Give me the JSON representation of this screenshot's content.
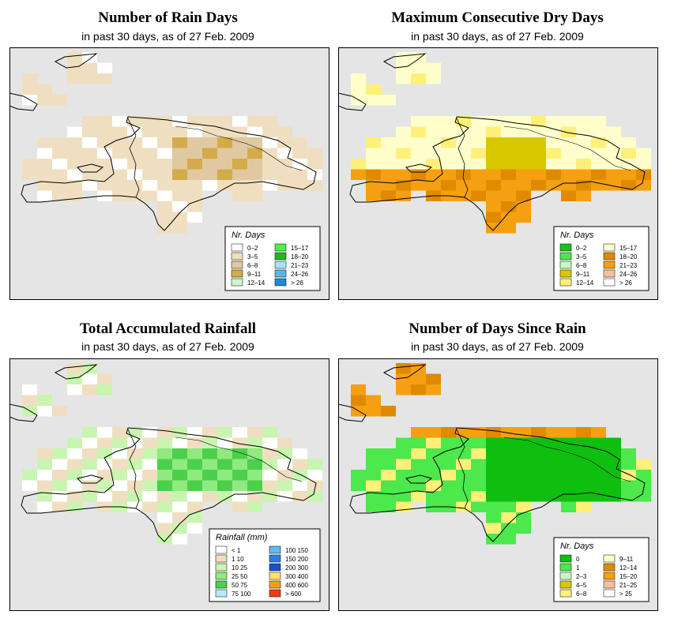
{
  "panels": [
    {
      "title": "Number of Rain Days",
      "subtitle": "in past 30 days, as of  27 Feb. 2009",
      "legend_title": "Nr. Days",
      "legend": [
        {
          "label": "0–2",
          "color": "#ffffff"
        },
        {
          "label": "3–5",
          "color": "#efdfc0"
        },
        {
          "label": "6–8",
          "color": "#e0c9a0"
        },
        {
          "label": "9–11",
          "color": "#d3ab4a"
        },
        {
          "label": "12–14",
          "color": "#ccf5cc"
        },
        {
          "label": "15–17",
          "color": "#4cf04c"
        },
        {
          "label": "18–20",
          "color": "#22b822"
        },
        {
          "label": "21–23",
          "color": "#a8e2f2"
        },
        {
          "label": "24–26",
          "color": "#5ab5ea"
        },
        {
          "label": "> 26",
          "color": "#1f8ad5"
        }
      ]
    },
    {
      "title": "Maximum Consecutive Dry Days",
      "subtitle": "in past 30 days, as of  27 Feb. 2009",
      "legend_title": "Nr. Days",
      "legend": [
        {
          "label": "0–2",
          "color": "#1fbf1f"
        },
        {
          "label": "3–5",
          "color": "#4ce84c"
        },
        {
          "label": "6–8",
          "color": "#c8f8c8"
        },
        {
          "label": "9–11",
          "color": "#d8c800"
        },
        {
          "label": "12–14",
          "color": "#fff07a"
        },
        {
          "label": "15–17",
          "color": "#ffffcc"
        },
        {
          "label": "18–20",
          "color": "#e08a00"
        },
        {
          "label": "21–23",
          "color": "#f5a010"
        },
        {
          "label": "24–26",
          "color": "#f8c09a"
        },
        {
          "label": "> 26",
          "color": "#ffffff"
        }
      ]
    },
    {
      "title": "Total Accumulated Rainfall",
      "subtitle": "in past 30 days, as of  27 Feb. 2009",
      "legend_title": "Rainfall (mm)",
      "legend": [
        {
          "label": "< 1",
          "color": "#ffffff"
        },
        {
          "label": "1   10",
          "color": "#efdfc0"
        },
        {
          "label": "10   25",
          "color": "#c8f5b0"
        },
        {
          "label": "25   50",
          "color": "#90ea80"
        },
        {
          "label": "50   75",
          "color": "#4cd04c"
        },
        {
          "label": "75   100",
          "color": "#b0eef8"
        },
        {
          "label": "100   150",
          "color": "#60b8ee"
        },
        {
          "label": "150   200",
          "color": "#2a80e8"
        },
        {
          "label": "200   300",
          "color": "#1c50c8"
        },
        {
          "label": "300   400",
          "color": "#ffe070"
        },
        {
          "label": "400   600",
          "color": "#f5a010"
        },
        {
          "label": "> 600",
          "color": "#f53a10"
        }
      ]
    },
    {
      "title": "Number of Days Since Rain",
      "subtitle": "in past 30 days, as of  27 Feb. 2009",
      "legend_title": "Nr. Days",
      "legend": [
        {
          "label": "0",
          "color": "#0fbf0f"
        },
        {
          "label": "1",
          "color": "#4ce84c"
        },
        {
          "label": "2–3",
          "color": "#c8f8c8"
        },
        {
          "label": "4–5",
          "color": "#d8c800"
        },
        {
          "label": "6–8",
          "color": "#fff07a"
        },
        {
          "label": "9–11",
          "color": "#ffffcc"
        },
        {
          "label": "12–14",
          "color": "#e08a00"
        },
        {
          "label": "15–20",
          "color": "#f5a010"
        },
        {
          "label": "21–25",
          "color": "#f8c09a"
        },
        {
          "label": "> 25",
          "color": "#ffffff"
        }
      ]
    }
  ]
}
